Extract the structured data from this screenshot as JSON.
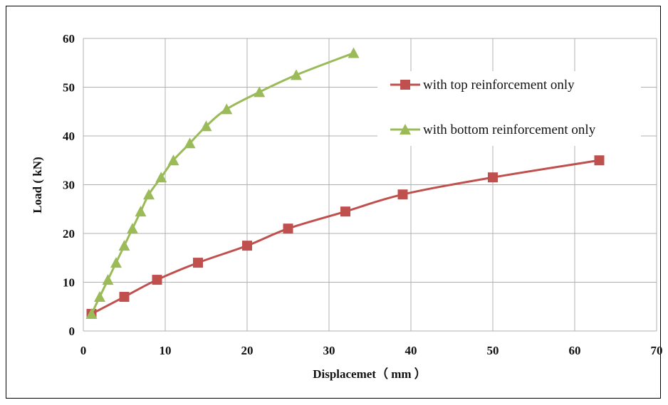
{
  "chart_data": {
    "type": "line",
    "title": "",
    "xlabel": "Displacemet（ mm ）",
    "ylabel": "Load ( kN)",
    "xlim": [
      0,
      70
    ],
    "ylim": [
      0,
      60
    ],
    "xticks": [
      0,
      10,
      20,
      30,
      40,
      50,
      60,
      70
    ],
    "yticks": [
      0,
      10,
      20,
      30,
      40,
      50,
      60
    ],
    "grid": true,
    "legend_position": "top-right",
    "series": [
      {
        "name": "with top reinforcement only",
        "color": "#c0504d",
        "marker": "square",
        "points": [
          [
            1,
            3.5
          ],
          [
            5,
            7
          ],
          [
            9,
            10.5
          ],
          [
            14,
            14
          ],
          [
            20,
            17.5
          ],
          [
            25,
            21
          ],
          [
            32,
            24.5
          ],
          [
            39,
            28
          ],
          [
            50,
            31.5
          ],
          [
            63,
            35
          ]
        ]
      },
      {
        "name": "with bottom reinforcement only",
        "color": "#9bbb59",
        "marker": "triangle",
        "points": [
          [
            1,
            3.5
          ],
          [
            2,
            7
          ],
          [
            3,
            10.5
          ],
          [
            4,
            14
          ],
          [
            5,
            17.5
          ],
          [
            6,
            21
          ],
          [
            7,
            24.5
          ],
          [
            8,
            28
          ],
          [
            9.5,
            31.5
          ],
          [
            11,
            35
          ],
          [
            13,
            38.5
          ],
          [
            15,
            42
          ],
          [
            17.5,
            45.5
          ],
          [
            21.5,
            49
          ],
          [
            26,
            52.5
          ],
          [
            33,
            57
          ]
        ]
      }
    ]
  }
}
